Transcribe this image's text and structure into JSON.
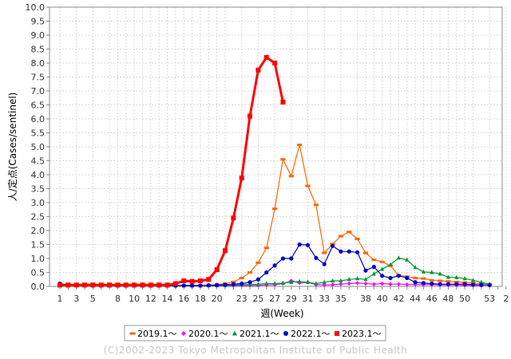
{
  "chart_data": {
    "type": "line",
    "xlabel": "週(Week)",
    "ylabel": "人/定点(Cases/sentinel)",
    "ylim": [
      0,
      10
    ],
    "yticks": [
      "0.0",
      "0.5",
      "1.0",
      "1.5",
      "2.0",
      "2.5",
      "3.0",
      "3.5",
      "4.0",
      "4.5",
      "5.0",
      "5.5",
      "6.0",
      "6.5",
      "7.0",
      "7.5",
      "8.0",
      "8.5",
      "9.0",
      "9.5",
      "10.0"
    ],
    "x_categories": [
      "1",
      "2",
      "3",
      "4",
      "5",
      "6",
      "7",
      "8",
      "9",
      "10",
      "11",
      "12",
      "13",
      "14",
      "15",
      "16",
      "17",
      "18",
      "19",
      "20",
      "21",
      "22",
      "23",
      "24",
      "25",
      "26",
      "27",
      "28",
      "29",
      "30",
      "31",
      "32",
      "33",
      "34",
      "35",
      "36",
      "37",
      "38",
      "39",
      "40",
      "41",
      "42",
      "43",
      "44",
      "45",
      "46",
      "47",
      "48",
      "49",
      "50",
      "51",
      "52",
      "53",
      "1",
      "2"
    ],
    "x_tick_labels": [
      "1",
      "3",
      "5",
      "8",
      "10",
      "12",
      "14",
      "16",
      "18",
      "20",
      "23",
      "25",
      "27",
      "29",
      "31",
      "33",
      "35",
      "38",
      "40",
      "42",
      "44",
      "46",
      "48",
      "50",
      "53",
      "2"
    ],
    "grid": true,
    "legend_position": "bottom",
    "series": [
      {
        "name": "2019.1～",
        "color": "#ff6600",
        "marker": "dash",
        "values": [
          0.02,
          0.02,
          0.02,
          0.02,
          0.02,
          0.02,
          0.02,
          0.02,
          0.02,
          0.02,
          0.02,
          0.02,
          0.02,
          0.02,
          0.02,
          0.03,
          0.03,
          0.03,
          0.04,
          0.06,
          0.1,
          0.16,
          0.3,
          0.5,
          0.85,
          1.38,
          2.78,
          4.55,
          3.95,
          5.07,
          3.6,
          2.92,
          1.2,
          1.52,
          1.8,
          1.95,
          1.7,
          1.2,
          0.95,
          0.88,
          0.74,
          0.4,
          0.35,
          0.3,
          0.28,
          0.22,
          0.2,
          0.18,
          0.16,
          0.14,
          0.12,
          0.1,
          0.08
        ]
      },
      {
        "name": "2020.1～",
        "color": "#ff00ff",
        "marker": "diamond",
        "values": [
          0.05,
          0.05,
          0.05,
          0.04,
          0.03,
          0.02,
          0.02,
          0.02,
          0.02,
          0.02,
          0.02,
          0.02,
          0.02,
          0.02,
          0.02,
          0.02,
          0.02,
          0.02,
          0.02,
          0.02,
          0.02,
          0.02,
          0.03,
          0.03,
          0.04,
          0.05,
          0.06,
          0.1,
          0.2,
          0.12,
          0.15,
          0.06,
          0.05,
          0.06,
          0.08,
          0.1,
          0.12,
          0.1,
          0.08,
          0.1,
          0.08,
          0.08,
          0.07,
          0.07,
          0.06,
          0.06,
          0.05,
          0.05,
          0.05,
          0.04,
          0.04,
          0.04
        ]
      },
      {
        "name": "2021.1～",
        "color": "#009933",
        "marker": "triangle",
        "values": [
          0.02,
          0.02,
          0.02,
          0.02,
          0.02,
          0.02,
          0.02,
          0.02,
          0.02,
          0.02,
          0.02,
          0.02,
          0.02,
          0.02,
          0.02,
          0.02,
          0.02,
          0.02,
          0.03,
          0.03,
          0.04,
          0.05,
          0.06,
          0.07,
          0.08,
          0.1,
          0.1,
          0.12,
          0.15,
          0.18,
          0.15,
          0.1,
          0.15,
          0.2,
          0.2,
          0.25,
          0.28,
          0.25,
          0.45,
          0.62,
          0.78,
          1.02,
          0.95,
          0.68,
          0.52,
          0.5,
          0.45,
          0.33,
          0.32,
          0.28,
          0.22,
          0.15,
          0.08
        ]
      },
      {
        "name": "2022.1～",
        "color": "#0000cc",
        "marker": "circle",
        "values": [
          0.1,
          0.05,
          0.05,
          0.04,
          0.04,
          0.04,
          0.03,
          0.03,
          0.03,
          0.03,
          0.03,
          0.03,
          0.03,
          0.03,
          0.03,
          0.03,
          0.03,
          0.03,
          0.04,
          0.05,
          0.06,
          0.08,
          0.1,
          0.15,
          0.25,
          0.5,
          0.75,
          1.0,
          1.0,
          1.5,
          1.48,
          1.02,
          0.8,
          1.45,
          1.25,
          1.25,
          1.22,
          0.57,
          0.7,
          0.38,
          0.3,
          0.38,
          0.3,
          0.15,
          0.12,
          0.1,
          0.08,
          0.08,
          0.08,
          0.08,
          0.06,
          0.05,
          0.05
        ]
      },
      {
        "name": "2023.1～",
        "color": "#ff0000",
        "marker": "square",
        "values": [
          0.05,
          0.05,
          0.05,
          0.05,
          0.05,
          0.05,
          0.05,
          0.05,
          0.05,
          0.05,
          0.05,
          0.05,
          0.05,
          0.05,
          0.1,
          0.2,
          0.18,
          0.2,
          0.25,
          0.6,
          1.28,
          2.45,
          3.88,
          6.1,
          7.75,
          8.2,
          8.0,
          6.6
        ]
      }
    ]
  },
  "footer": {
    "copyright": "(C)2002-2023 Tokyo Metropolitan Institute of Public Health"
  }
}
